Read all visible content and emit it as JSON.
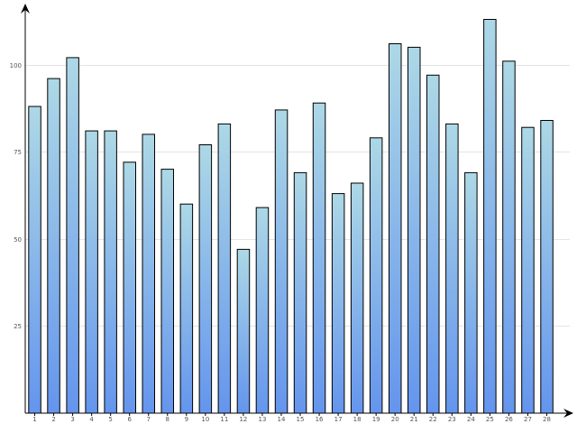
{
  "chart_data": {
    "type": "bar",
    "title": "",
    "xlabel": "",
    "ylabel": "",
    "categories": [
      "1",
      "2",
      "3",
      "4",
      "5",
      "6",
      "7",
      "8",
      "9",
      "10",
      "11",
      "12",
      "13",
      "14",
      "15",
      "16",
      "17",
      "18",
      "19",
      "20",
      "21",
      "22",
      "23",
      "24",
      "25",
      "26",
      "27",
      "28"
    ],
    "values": [
      88,
      96,
      102,
      81,
      81,
      72,
      80,
      70,
      60,
      77,
      83,
      47,
      59,
      87,
      69,
      89,
      63,
      66,
      79,
      106,
      105,
      97,
      83,
      69,
      113,
      101,
      82,
      84
    ],
    "yticks": [
      25,
      50,
      75,
      100
    ],
    "ytick_labels": [
      "25",
      "50",
      "75",
      "100"
    ],
    "ylim": [
      0,
      117
    ],
    "grid": true,
    "colors": {
      "bar_top": "#add8e6",
      "bar_bottom": "#6495ed",
      "bar_stroke": "#000000",
      "grid": "#e4e4e4"
    }
  }
}
